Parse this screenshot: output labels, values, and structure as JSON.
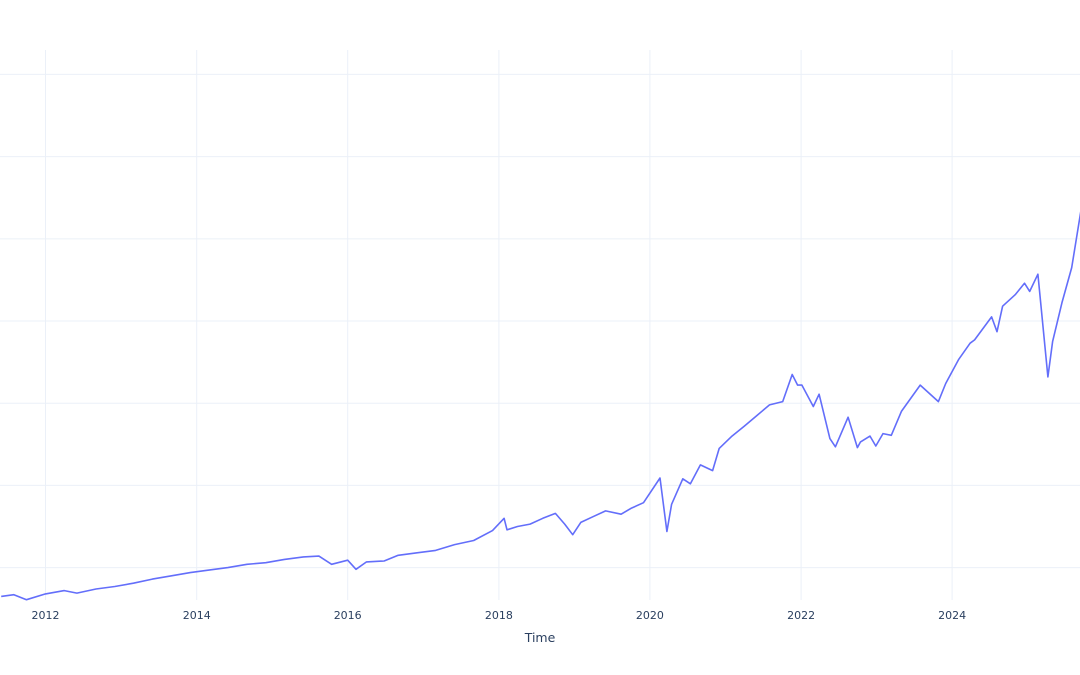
{
  "chart_data": {
    "type": "line",
    "title": "",
    "xlabel": "Time",
    "ylabel": "",
    "grid": true,
    "legend": "none",
    "x_ticks": [
      "2012",
      "2014",
      "2016",
      "2018",
      "2020",
      "2022",
      "2024"
    ],
    "xlim": [
      "2011-06-01",
      "2025-09-30"
    ],
    "ylim": [
      0,
      650
    ],
    "y_gridlines": [
      40,
      140,
      240,
      340,
      440,
      540,
      640
    ],
    "series": [
      {
        "color": "#636efa",
        "x": [
          "2011-06-01",
          "2011-08-01",
          "2011-10-01",
          "2012-01-01",
          "2012-04-01",
          "2012-06-01",
          "2012-09-01",
          "2012-12-01",
          "2013-03-01",
          "2013-06-01",
          "2013-09-01",
          "2013-12-01",
          "2014-03-01",
          "2014-06-01",
          "2014-09-01",
          "2014-12-01",
          "2015-03-01",
          "2015-06-01",
          "2015-08-15",
          "2015-10-15",
          "2016-01-01",
          "2016-02-10",
          "2016-04-01",
          "2016-06-25",
          "2016-09-01",
          "2016-12-01",
          "2017-03-01",
          "2017-06-01",
          "2017-09-01",
          "2017-12-01",
          "2018-01-26",
          "2018-02-09",
          "2018-04-01",
          "2018-06-01",
          "2018-08-01",
          "2018-10-01",
          "2018-11-15",
          "2018-12-24",
          "2019-02-01",
          "2019-04-01",
          "2019-06-01",
          "2019-08-15",
          "2019-10-01",
          "2019-12-01",
          "2020-02-19",
          "2020-03-23",
          "2020-04-15",
          "2020-06-08",
          "2020-07-15",
          "2020-09-01",
          "2020-10-30",
          "2020-12-01",
          "2021-02-01",
          "2021-04-01",
          "2021-06-01",
          "2021-08-01",
          "2021-10-04",
          "2021-11-19",
          "2021-12-15",
          "2022-01-05",
          "2022-03-01",
          "2022-03-29",
          "2022-05-20",
          "2022-06-16",
          "2022-08-16",
          "2022-09-30",
          "2022-10-15",
          "2022-11-30",
          "2022-12-28",
          "2023-02-01",
          "2023-03-13",
          "2023-05-01",
          "2023-07-31",
          "2023-10-27",
          "2023-12-01",
          "2024-02-01",
          "2024-03-28",
          "2024-04-19",
          "2024-07-10",
          "2024-08-05",
          "2024-09-01",
          "2024-11-01",
          "2024-12-16",
          "2025-01-10",
          "2025-02-19",
          "2025-04-08",
          "2025-05-01",
          "2025-06-15",
          "2025-08-01",
          "2025-09-30"
        ],
        "y": [
          5,
          7,
          1,
          8,
          12,
          9,
          14,
          17,
          21,
          26,
          30,
          34,
          37,
          40,
          44,
          46,
          50,
          53,
          54,
          44,
          49,
          38,
          47,
          48,
          55,
          58,
          61,
          68,
          73,
          85,
          100,
          86,
          90,
          93,
          100,
          106,
          93,
          80,
          95,
          102,
          109,
          105,
          112,
          119,
          149,
          84,
          117,
          148,
          142,
          165,
          158,
          185,
          200,
          212,
          225,
          238,
          242,
          275,
          262,
          262,
          236,
          251,
          197,
          187,
          223,
          186,
          193,
          200,
          188,
          203,
          201,
          230,
          262,
          242,
          264,
          293,
          313,
          317,
          345,
          327,
          358,
          372,
          386,
          376,
          397,
          272,
          315,
          362,
          405,
          498
        ]
      }
    ]
  }
}
